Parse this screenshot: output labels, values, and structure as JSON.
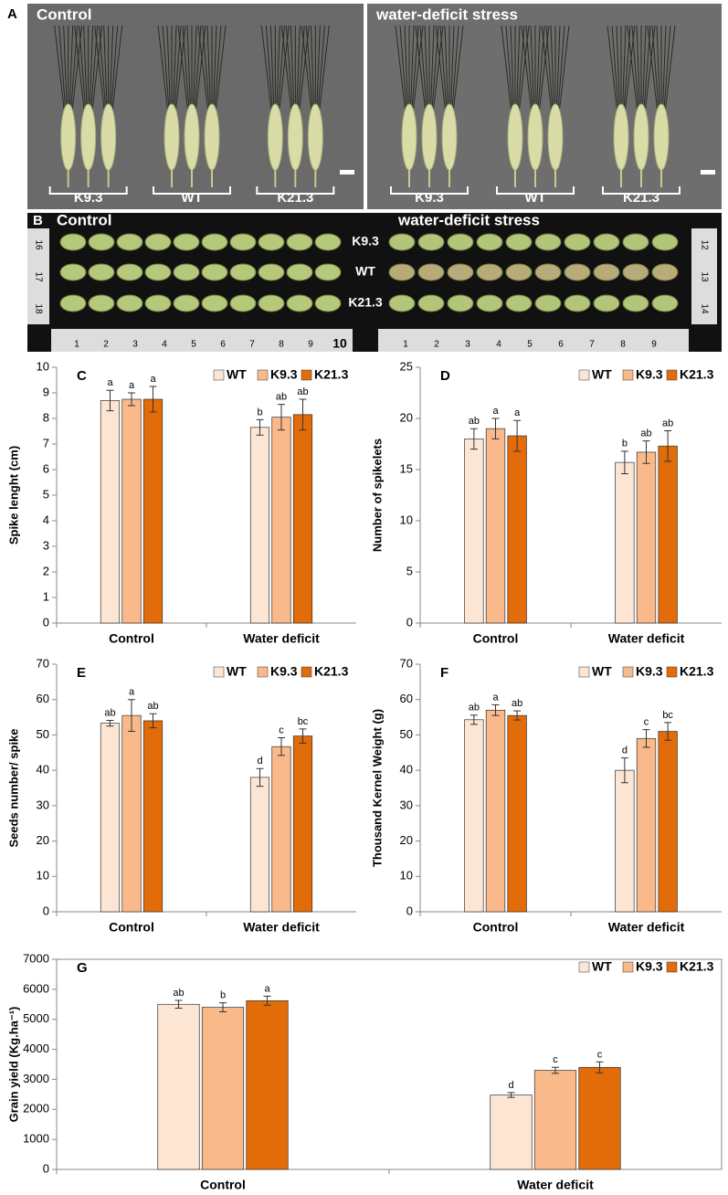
{
  "figure_a": {
    "label": "A",
    "left_title": "Control",
    "right_title": "water-deficit stress",
    "groups_left": [
      "K9.3",
      "WT",
      "K21.3"
    ],
    "groups_right": [
      "K9.3",
      "WT",
      "K21.3"
    ]
  },
  "figure_b": {
    "label": "B",
    "left_title": "Control",
    "right_title": "water-deficit stress",
    "row_labels": [
      "K9.3",
      "WT",
      "K21.3"
    ],
    "ruler_bottom_left": [
      "1",
      "2",
      "3",
      "4",
      "5",
      "6",
      "7",
      "8",
      "9",
      "10"
    ],
    "ruler_bottom_right": [
      "1",
      "2",
      "3",
      "4",
      "5",
      "6",
      "7",
      "8",
      "9"
    ],
    "ruler_side_left": [
      "16",
      "17",
      "18"
    ],
    "ruler_side_right": [
      "12",
      "13",
      "14"
    ]
  },
  "chart_data": [
    {
      "type": "bar",
      "panel": "C",
      "ylabel": "Spike lenght (cm)",
      "categories": [
        "Control",
        "Water deficit"
      ],
      "series": [
        {
          "name": "WT",
          "color": "#fde5d4",
          "values": [
            8.7,
            7.65
          ],
          "errors": [
            0.4,
            0.3
          ],
          "letters": [
            "a",
            "b"
          ]
        },
        {
          "name": "K9.3",
          "color": "#f9b98a",
          "values": [
            8.75,
            8.05
          ],
          "errors": [
            0.25,
            0.5
          ],
          "letters": [
            "a",
            "ab"
          ]
        },
        {
          "name": "K21.3",
          "color": "#e26b0a",
          "values": [
            8.75,
            8.15
          ],
          "errors": [
            0.5,
            0.6
          ],
          "letters": [
            "a",
            "ab"
          ]
        }
      ],
      "ylim": [
        0,
        10
      ],
      "yticks": [
        0,
        1,
        2,
        3,
        4,
        5,
        6,
        7,
        8,
        9,
        10
      ],
      "legend": "top-right"
    },
    {
      "type": "bar",
      "panel": "D",
      "ylabel": "Number of spikelets",
      "categories": [
        "Control",
        "Water deficit"
      ],
      "series": [
        {
          "name": "WT",
          "color": "#fde5d4",
          "values": [
            18.0,
            15.7
          ],
          "errors": [
            1.0,
            1.1
          ],
          "letters": [
            "ab",
            "b"
          ]
        },
        {
          "name": "K9.3",
          "color": "#f9b98a",
          "values": [
            19.0,
            16.7
          ],
          "errors": [
            1.0,
            1.1
          ],
          "letters": [
            "a",
            "ab"
          ]
        },
        {
          "name": "K21.3",
          "color": "#e26b0a",
          "values": [
            18.3,
            17.3
          ],
          "errors": [
            1.5,
            1.5
          ],
          "letters": [
            "a",
            "ab"
          ]
        }
      ],
      "ylim": [
        0,
        25
      ],
      "yticks": [
        0,
        5,
        10,
        15,
        20,
        25
      ],
      "legend": "top-right"
    },
    {
      "type": "bar",
      "panel": "E",
      "ylabel": "Seeds number/ spike",
      "categories": [
        "Control",
        "Water deficit"
      ],
      "series": [
        {
          "name": "WT",
          "color": "#fde5d4",
          "values": [
            53.3,
            38.0
          ],
          "errors": [
            0.8,
            2.5
          ],
          "letters": [
            "ab",
            "d"
          ]
        },
        {
          "name": "K9.3",
          "color": "#f9b98a",
          "values": [
            55.5,
            46.7
          ],
          "errors": [
            4.5,
            2.5
          ],
          "letters": [
            "a",
            "c"
          ]
        },
        {
          "name": "K21.3",
          "color": "#e26b0a",
          "values": [
            54.0,
            49.7
          ],
          "errors": [
            2.0,
            2.0
          ],
          "letters": [
            "ab",
            "bc"
          ]
        }
      ],
      "ylim": [
        0,
        70
      ],
      "yticks": [
        0,
        10,
        20,
        30,
        40,
        50,
        60,
        70
      ],
      "legend": "top-right"
    },
    {
      "type": "bar",
      "panel": "F",
      "ylabel": "Thousand Kernel Weight (g)",
      "categories": [
        "Control",
        "Water deficit"
      ],
      "series": [
        {
          "name": "WT",
          "color": "#fde5d4",
          "values": [
            54.3,
            40.0
          ],
          "errors": [
            1.3,
            3.5
          ],
          "letters": [
            "ab",
            "d"
          ]
        },
        {
          "name": "K9.3",
          "color": "#f9b98a",
          "values": [
            57.0,
            49.0
          ],
          "errors": [
            1.5,
            2.5
          ],
          "letters": [
            "a",
            "c"
          ]
        },
        {
          "name": "K21.3",
          "color": "#e26b0a",
          "values": [
            55.5,
            51.0
          ],
          "errors": [
            1.3,
            2.5
          ],
          "letters": [
            "ab",
            "bc"
          ]
        }
      ],
      "ylim": [
        0,
        70
      ],
      "yticks": [
        0,
        10,
        20,
        30,
        40,
        50,
        60,
        70
      ],
      "legend": "top-right"
    },
    {
      "type": "bar",
      "panel": "G",
      "ylabel": "Grain yield (Kg.ha⁻¹)",
      "categories": [
        "Control",
        "Water deficit"
      ],
      "series": [
        {
          "name": "WT",
          "color": "#fde5d4",
          "values": [
            5500,
            2480
          ],
          "errors": [
            130,
            80
          ],
          "letters": [
            "ab",
            "d"
          ]
        },
        {
          "name": "K9.3",
          "color": "#f9b98a",
          "values": [
            5400,
            3300
          ],
          "errors": [
            150,
            100
          ],
          "letters": [
            "b",
            "c"
          ]
        },
        {
          "name": "K21.3",
          "color": "#e26b0a",
          "values": [
            5620,
            3400
          ],
          "errors": [
            150,
            180
          ],
          "letters": [
            "a",
            "c"
          ]
        }
      ],
      "ylim": [
        0,
        7000
      ],
      "yticks": [
        0,
        1000,
        2000,
        3000,
        4000,
        5000,
        6000,
        7000
      ],
      "legend": "top-right",
      "frame": true
    }
  ]
}
